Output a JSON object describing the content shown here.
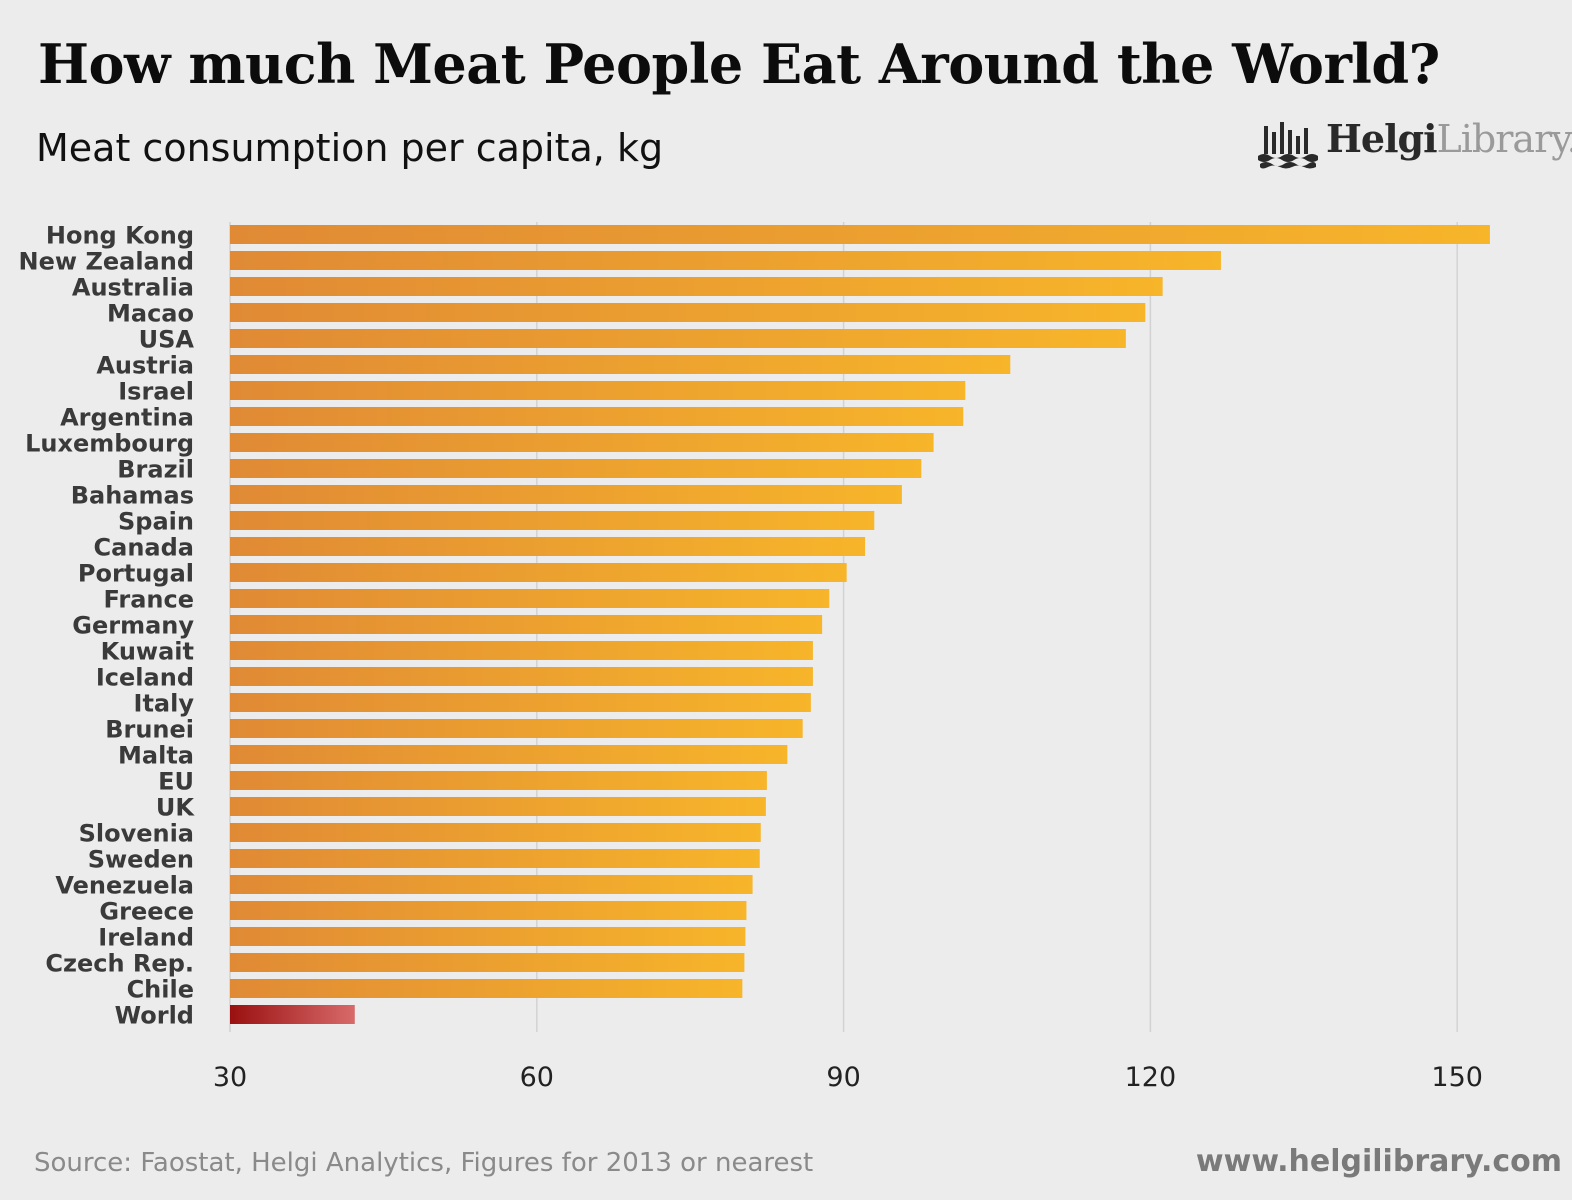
{
  "title": "How much Meat People Eat Around the World?",
  "subtitle": "Meat consumption per capita, kg",
  "logo": {
    "name": "HelgiLibrary",
    "bold": "Helgi",
    "light": "Library."
  },
  "footer": {
    "source": "Source: Faostat, Helgi Analytics, Figures for 2013 or nearest",
    "site": "www.helgilibrary.com"
  },
  "colors": {
    "bar_start": "#e08a35",
    "bar_end": "#f7b52a",
    "highlight_start": "#9a1010",
    "highlight_end": "#d86a6a",
    "grid": "#d2d2d2",
    "background": "#ececec"
  },
  "chart_data": {
    "type": "bar",
    "orientation": "horizontal",
    "categories": [
      "Hong Kong",
      "New Zealand",
      "Australia",
      "Macao",
      "USA",
      "Austria",
      "Israel",
      "Argentina",
      "Luxembourg",
      "Brazil",
      "Bahamas",
      "Spain",
      "Canada",
      "Portugal",
      "France",
      "Germany",
      "Kuwait",
      "Iceland",
      "Italy",
      "Brunei",
      "Malta",
      "EU",
      "UK",
      "Slovenia",
      "Sweden",
      "Venezuela",
      "Greece",
      "Ireland",
      "Czech Rep.",
      "Chile",
      "World"
    ],
    "values": [
      153.2,
      126.9,
      121.2,
      119.5,
      117.6,
      106.3,
      101.9,
      101.7,
      98.8,
      97.6,
      95.7,
      93.0,
      92.1,
      90.3,
      88.6,
      87.9,
      87.0,
      87.0,
      86.8,
      86.0,
      84.5,
      82.5,
      82.4,
      81.9,
      81.8,
      81.1,
      80.5,
      80.4,
      80.3,
      80.1,
      42.2
    ],
    "highlight": [
      "World"
    ],
    "xlim": [
      30,
      158
    ],
    "xticks": [
      30,
      60,
      90,
      120,
      150
    ],
    "xlabel": "",
    "ylabel": "",
    "grid": true,
    "legend": "none"
  }
}
